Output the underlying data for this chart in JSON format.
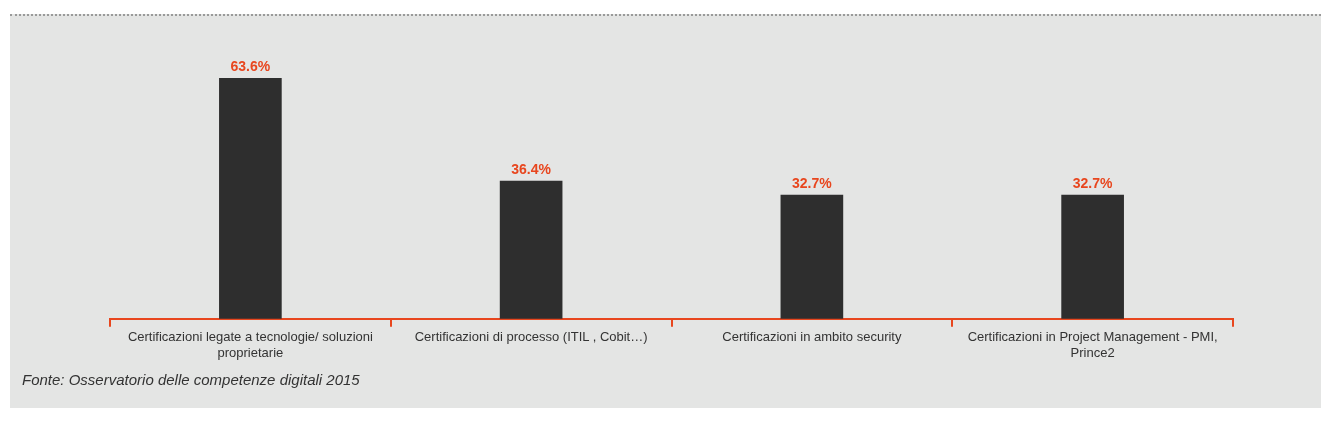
{
  "chart_data": {
    "type": "bar",
    "categories": [
      "Certificazioni legate a tecnologie/ soluzioni proprietarie",
      "Certificazioni di processo (ITIL , Cobit…)",
      "Certificazioni in ambito security",
      "Certificazioni in Project Management - PMI, Prince2"
    ],
    "values": [
      63.6,
      36.4,
      32.7,
      32.7
    ],
    "color": "#2e2e2e",
    "value_labels": [
      "63.6%",
      "36.4%",
      "32.7%",
      "32.7%"
    ],
    "grid": false,
    "legend": false,
    "tick_labels": "x",
    "annotations": [
      "Fonte: Osservatorio delle competenze digitali 2015"
    ]
  }
}
